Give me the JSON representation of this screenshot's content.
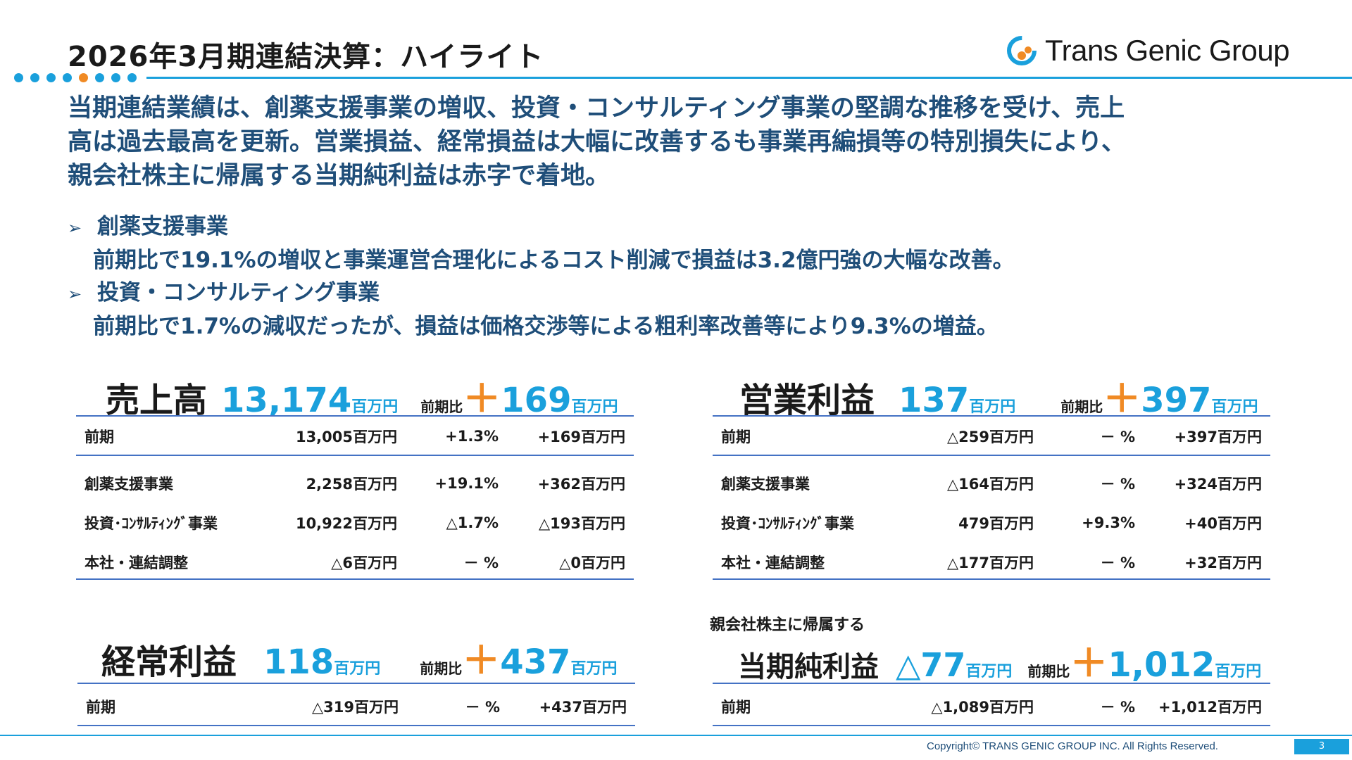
{
  "title": "2026年3月期連結決算：ハイライト",
  "logo": {
    "text": "Trans Genic Group",
    "icon": "tgg-logo-icon",
    "colors": [
      "#1aa0dc",
      "#f08a24"
    ]
  },
  "lead": [
    "当期連結業績は、創薬支援事業の増収、投資・コンサルティング事業の堅調な推移を受け、売上",
    "高は過去最高を更新。営業損益、経常損益は大幅に改善するも事業再編損等の特別損失により、",
    "親会社株主に帰属する当期純利益は赤字で着地。"
  ],
  "bullets": [
    {
      "arrow": "➢",
      "head": "創薬支援事業",
      "text": "前期比で19.1%の増収と事業運営合理化によるコスト削減で損益は3.2億円強の大幅な改善。"
    },
    {
      "arrow": "➢",
      "head": "投資・コンサルティング事業",
      "text": "前期比で1.7%の減収だったが、損益は価格交渉等による粗利率改善等により9.3%の増益。"
    }
  ],
  "sales": {
    "label": "売上高",
    "value": "13,174",
    "unit": "百万円",
    "cmp_label": "前期比",
    "sign": "＋",
    "change": "169",
    "change_unit": "百万円",
    "rows": [
      [
        "前期",
        "13,005百万円",
        "+1.3%",
        "+169百万円"
      ],
      [
        "創薬支援事業",
        "2,258百万円",
        "+19.1%",
        "+362百万円"
      ],
      [
        "投資･ｺﾝｻﾙﾃｨﾝｸﾞ事業",
        "10,922百万円",
        "△1.7%",
        "△193百万円"
      ],
      [
        "本社・連結調整",
        "△6百万円",
        "－ %",
        "△0百万円"
      ]
    ]
  },
  "operating": {
    "label": "営業利益",
    "value": "137",
    "unit": "百万円",
    "cmp_label": "前期比",
    "sign": "＋",
    "change": "397",
    "change_unit": "百万円",
    "rows": [
      [
        "前期",
        "△259百万円",
        "－ %",
        "+397百万円"
      ],
      [
        "創薬支援事業",
        "△164百万円",
        "－ %",
        "+324百万円"
      ],
      [
        "投資･ｺﾝｻﾙﾃｨﾝｸﾞ事業",
        "479百万円",
        "+9.3%",
        "+40百万円"
      ],
      [
        "本社・連結調整",
        "△177百万円",
        "－ %",
        "+32百万円"
      ]
    ]
  },
  "ordinary": {
    "label": "経常利益",
    "value": "118",
    "unit": "百万円",
    "cmp_label": "前期比",
    "sign": "＋",
    "change": "437",
    "change_unit": "百万円",
    "rows": [
      [
        "前期",
        "△319百万円",
        "－ %",
        "+437百万円"
      ]
    ]
  },
  "net": {
    "pre_label": "親会社株主に帰属する",
    "label": "当期純利益",
    "value": "△77",
    "unit": "百万円",
    "cmp_label": "前期比",
    "sign": "＋",
    "change": "1,012",
    "change_unit": "百万円",
    "rows": [
      [
        "前期",
        "△1,089百万円",
        "－ %",
        "+1,012百万円"
      ]
    ]
  },
  "footer": {
    "copyright": "Copyright© TRANS GENIC GROUP INC. All Rights Reserved.",
    "page": "3"
  }
}
